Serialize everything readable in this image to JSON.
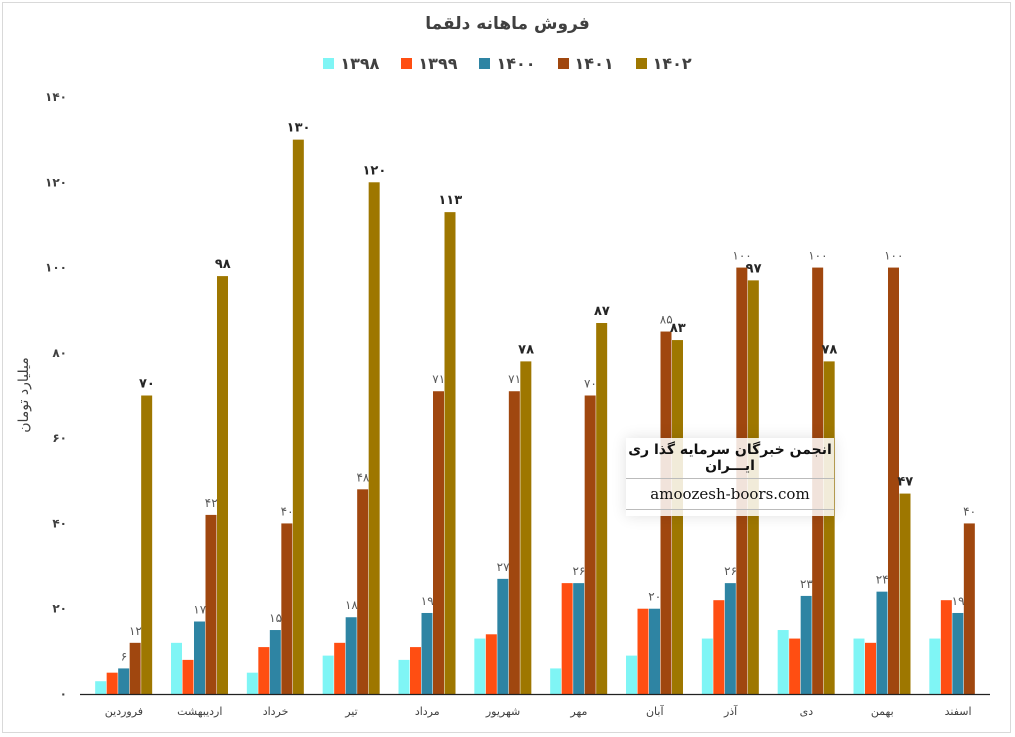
{
  "chart_data": {
    "type": "bar",
    "title": "فروش ماهانه دلقما",
    "ylabel": "میلیارد تومان",
    "xlabel": "",
    "ylim": [
      0,
      140
    ],
    "yticks": [
      0,
      20,
      40,
      60,
      80,
      100,
      120,
      140
    ],
    "ytick_labels": [
      "۰",
      "۲۰",
      "۴۰",
      "۶۰",
      "۸۰",
      "۱۰۰",
      "۱۲۰",
      "۱۴۰"
    ],
    "legend_position": "top",
    "grid": false,
    "categories": [
      "فروردین",
      "اردیبهشت",
      "خرداد",
      "تیر",
      "مرداد",
      "شهریور",
      "مهر",
      "آبان",
      "آذر",
      "دی",
      "بهمن",
      "اسفند"
    ],
    "series": [
      {
        "name": "۱۳۹۸",
        "color": "#7ff5f5",
        "values": [
          3,
          12,
          5,
          9,
          8,
          13,
          6,
          9,
          13,
          15,
          13,
          13
        ]
      },
      {
        "name": "۱۳۹۹",
        "color": "#ff4e12",
        "values": [
          5,
          8,
          11,
          12,
          11,
          14,
          26,
          20,
          22,
          13,
          12,
          22
        ]
      },
      {
        "name": "۱۴۰۰",
        "color": "#2e84a3",
        "values": [
          6,
          17,
          15,
          18,
          19,
          27,
          26,
          20,
          26,
          23,
          24,
          19
        ]
      },
      {
        "name": "۱۴۰۱",
        "color": "#a0470f",
        "values": [
          12,
          42,
          40,
          48,
          71,
          71,
          70,
          85,
          100,
          100,
          100,
          40
        ]
      },
      {
        "name": "۱۴۰۲",
        "color": "#9e7700",
        "values": [
          70,
          98,
          130,
          120,
          113,
          78,
          87,
          83,
          97,
          78,
          47,
          null
        ]
      }
    ],
    "data_labels": [
      {
        "series": 2,
        "index": 0,
        "text": "۶"
      },
      {
        "series": 3,
        "index": 0,
        "text": "۱۲"
      },
      {
        "series": 4,
        "index": 0,
        "text": "۷۰",
        "bold": true
      },
      {
        "series": 2,
        "index": 1,
        "text": "۱۷"
      },
      {
        "series": 3,
        "index": 1,
        "text": "۴۲"
      },
      {
        "series": 4,
        "index": 1,
        "text": "۹۸",
        "bold": true
      },
      {
        "series": 2,
        "index": 2,
        "text": "۱۵"
      },
      {
        "series": 3,
        "index": 2,
        "text": "۴۰"
      },
      {
        "series": 4,
        "index": 2,
        "text": "۱۳۰",
        "bold": true
      },
      {
        "series": 2,
        "index": 3,
        "text": "۱۸"
      },
      {
        "series": 3,
        "index": 3,
        "text": "۴۸"
      },
      {
        "series": 4,
        "index": 3,
        "text": "۱۲۰",
        "bold": true
      },
      {
        "series": 2,
        "index": 4,
        "text": "۱۹"
      },
      {
        "series": 3,
        "index": 4,
        "text": "۷۱"
      },
      {
        "series": 4,
        "index": 4,
        "text": "۱۱۳",
        "bold": true
      },
      {
        "series": 2,
        "index": 5,
        "text": "۲۷"
      },
      {
        "series": 3,
        "index": 5,
        "text": "۷۱"
      },
      {
        "series": 4,
        "index": 5,
        "text": "۷۸",
        "bold": true
      },
      {
        "series": 2,
        "index": 6,
        "text": "۲۶"
      },
      {
        "series": 3,
        "index": 6,
        "text": "۷۰"
      },
      {
        "series": 4,
        "index": 6,
        "text": "۸۷",
        "bold": true
      },
      {
        "series": 2,
        "index": 7,
        "text": "۲۰"
      },
      {
        "series": 3,
        "index": 7,
        "text": "۸۵"
      },
      {
        "series": 4,
        "index": 7,
        "text": "۸۳",
        "bold": true
      },
      {
        "series": 2,
        "index": 8,
        "text": "۲۶"
      },
      {
        "series": 3,
        "index": 8,
        "text": "۱۰۰"
      },
      {
        "series": 4,
        "index": 8,
        "text": "۹۷",
        "bold": true
      },
      {
        "series": 2,
        "index": 9,
        "text": "۲۳"
      },
      {
        "series": 3,
        "index": 9,
        "text": "۱۰۰"
      },
      {
        "series": 4,
        "index": 9,
        "text": "۷۸",
        "bold": true
      },
      {
        "series": 2,
        "index": 10,
        "text": "۲۴"
      },
      {
        "series": 3,
        "index": 10,
        "text": "۱۰۰"
      },
      {
        "series": 4,
        "index": 10,
        "text": "۴۷",
        "bold": true
      },
      {
        "series": 2,
        "index": 11,
        "text": "۱۹"
      },
      {
        "series": 3,
        "index": 11,
        "text": "۴۰"
      }
    ]
  },
  "watermark": {
    "title": "انجمن خبرگان سرمایه گذا ری ایـــران",
    "url": "amoozesh-boors.com"
  }
}
